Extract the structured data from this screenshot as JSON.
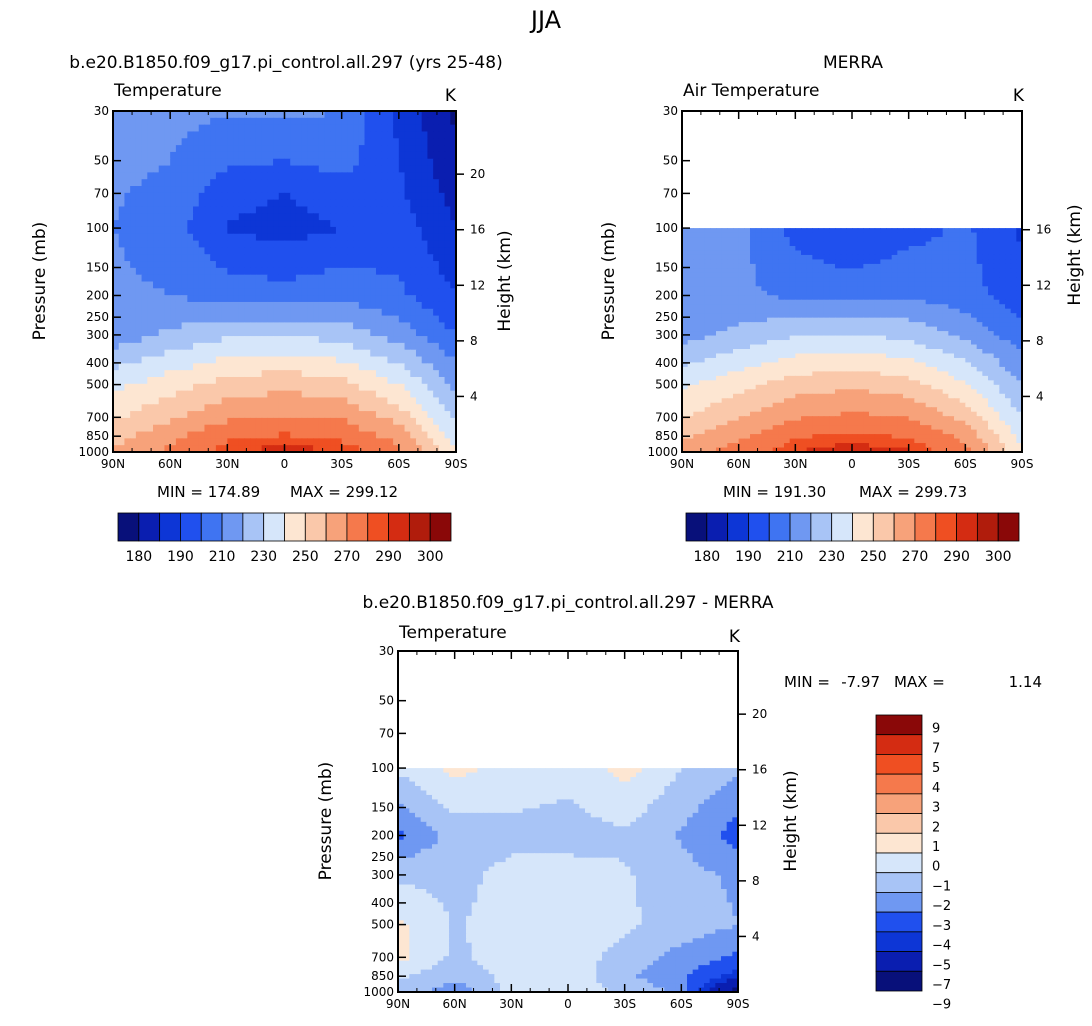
{
  "page_title": "JJA",
  "colors": {
    "scale14": [
      "#08107a",
      "#0a1eb0",
      "#0d36d6",
      "#2050ee",
      "#3f74f2",
      "#6f98f2",
      "#a8c4f6",
      "#d6e6fa",
      "#fde6d2",
      "#fac8aa",
      "#f7a27a",
      "#f5794c",
      "#ef4f22",
      "#d42c12",
      "#b01c0c",
      "#8a0808"
    ],
    "diff": [
      "#08107a",
      "#0a1eb0",
      "#0d36d6",
      "#2050ee",
      "#6f98f2",
      "#a8c4f6",
      "#d6e6fa",
      "#fde6d2",
      "#fac8aa",
      "#f7a27a",
      "#f5794c",
      "#ef4f22",
      "#d42c12",
      "#8a0808"
    ]
  },
  "chart_data": [
    {
      "type": "heatmap",
      "title": "b.e20.B1850.f09_g17.pi_control.all.297 (yrs 25-48)",
      "variable_label": "Temperature",
      "units": "K",
      "xlabel": "",
      "ylabel": "Pressure (mb)",
      "ylabel_right": "Height (km)",
      "x_ticks": [
        "90N",
        "60N",
        "30N",
        "0",
        "30S",
        "60S",
        "90S"
      ],
      "y_ticks": [
        "30",
        "50",
        "70",
        "100",
        "150",
        "200",
        "250",
        "300",
        "400",
        "500",
        "700",
        "850",
        "1000"
      ],
      "y_ticks_right": [
        "20",
        "16",
        "12",
        "8",
        "4"
      ],
      "pressure_range": [
        30,
        1000
      ],
      "min_label": "MIN = 174.89",
      "max_label": "MAX = 299.12",
      "colorbar_labels": [
        "180",
        "190",
        "210",
        "230",
        "250",
        "270",
        "290",
        "300"
      ],
      "data_top_mb": 30,
      "temperature_k": {
        "lats": [
          90,
          60,
          30,
          0,
          -30,
          -60,
          -90
        ],
        "pressures": [
          1000,
          850,
          700,
          500,
          300,
          200,
          100,
          70,
          50,
          30
        ],
        "values": [
          [
            272,
            282,
            294,
            298,
            295,
            283,
            250
          ],
          [
            266,
            277,
            288,
            291,
            288,
            276,
            246
          ],
          [
            258,
            268,
            278,
            281,
            279,
            266,
            238
          ],
          [
            247,
            256,
            264,
            267,
            263,
            250,
            228
          ],
          [
            224,
            232,
            238,
            240,
            236,
            226,
            210
          ],
          [
            222,
            220,
            216,
            214,
            217,
            212,
            200
          ],
          [
            220,
            215,
            199,
            196,
            200,
            205,
            190
          ],
          [
            221,
            217,
            204,
            200,
            205,
            202,
            186
          ],
          [
            223,
            220,
            212,
            210,
            214,
            200,
            182
          ],
          [
            224,
            223,
            221,
            222,
            220,
            198,
            178
          ]
        ]
      }
    },
    {
      "type": "heatmap",
      "title": "MERRA",
      "variable_label": "Air Temperature",
      "units": "K",
      "xlabel": "",
      "ylabel": "Pressure (mb)",
      "ylabel_right": "Height (km)",
      "x_ticks": [
        "90N",
        "60N",
        "30N",
        "0",
        "30S",
        "60S",
        "90S"
      ],
      "y_ticks": [
        "30",
        "50",
        "70",
        "100",
        "150",
        "200",
        "250",
        "300",
        "400",
        "500",
        "700",
        "850",
        "1000"
      ],
      "y_ticks_right": [
        "16",
        "12",
        "8",
        "4"
      ],
      "pressure_range": [
        30,
        1000
      ],
      "min_label": "MIN = 191.30",
      "max_label": "MAX = 299.73",
      "colorbar_labels": [
        "180",
        "190",
        "210",
        "230",
        "250",
        "270",
        "290",
        "300"
      ],
      "data_top_mb": 100,
      "temperature_k": {
        "lats": [
          90,
          60,
          30,
          0,
          -30,
          -60,
          -90
        ],
        "pressures": [
          1000,
          850,
          700,
          500,
          300,
          200,
          100
        ],
        "values": [
          [
            276,
            284,
            295,
            299,
            296,
            284,
            252
          ],
          [
            268,
            278,
            289,
            292,
            289,
            277,
            247
          ],
          [
            259,
            269,
            279,
            282,
            280,
            267,
            240
          ],
          [
            248,
            257,
            265,
            268,
            264,
            251,
            230
          ],
          [
            226,
            233,
            239,
            241,
            237,
            228,
            214
          ],
          [
            226,
            222,
            218,
            216,
            219,
            214,
            204
          ],
          [
            228,
            223,
            206,
            200,
            206,
            212,
            198
          ]
        ]
      }
    },
    {
      "type": "heatmap",
      "title": "b.e20.B1850.f09_g17.pi_control.all.297 - MERRA",
      "variable_label": "Temperature",
      "units": "K",
      "xlabel": "",
      "ylabel": "Pressure (mb)",
      "ylabel_right": "Height (km)",
      "x_ticks": [
        "90N",
        "60N",
        "30N",
        "0",
        "30S",
        "60S",
        "90S"
      ],
      "y_ticks": [
        "30",
        "50",
        "70",
        "100",
        "150",
        "200",
        "250",
        "300",
        "400",
        "500",
        "700",
        "850",
        "1000"
      ],
      "y_ticks_right": [
        "20",
        "16",
        "12",
        "8",
        "4"
      ],
      "pressure_range": [
        30,
        1000
      ],
      "min_label": "MIN =",
      "min_value": "-7.97",
      "max_label": "MAX =",
      "max_value": "1.14",
      "colorbar_labels": [
        "9",
        "7",
        "5",
        "4",
        "3",
        "2",
        "1",
        "0",
        "-1",
        "-2",
        "-3",
        "-4",
        "-5",
        "-7",
        "-9"
      ],
      "data_top_mb": 100,
      "difference_k": {
        "lats": [
          90,
          60,
          30,
          0,
          -30,
          -60,
          -90
        ],
        "pressures": [
          1000,
          850,
          700,
          500,
          300,
          200,
          100
        ],
        "values": [
          [
            -1.5,
            -2.6,
            -0.7,
            -0.4,
            -1.2,
            -2.2,
            -7.97
          ],
          [
            -0.8,
            -1.8,
            -0.6,
            -0.3,
            -1.8,
            -2.8,
            -4.5
          ],
          [
            0.3,
            -1.2,
            -0.5,
            -0.4,
            -1.4,
            -2.4,
            -3.2
          ],
          [
            0.2,
            -1.1,
            -0.6,
            -0.5,
            -0.8,
            -1.4,
            -2.0
          ],
          [
            -1.2,
            -1.3,
            -0.7,
            -0.6,
            -0.9,
            -1.6,
            -2.2
          ],
          [
            -3.2,
            -1.6,
            -1.3,
            -1.4,
            -1.2,
            -2.1,
            -3.5
          ],
          [
            -0.8,
            0.3,
            -0.4,
            -0.7,
            0.4,
            -1.0,
            -1.8
          ]
        ]
      }
    }
  ]
}
